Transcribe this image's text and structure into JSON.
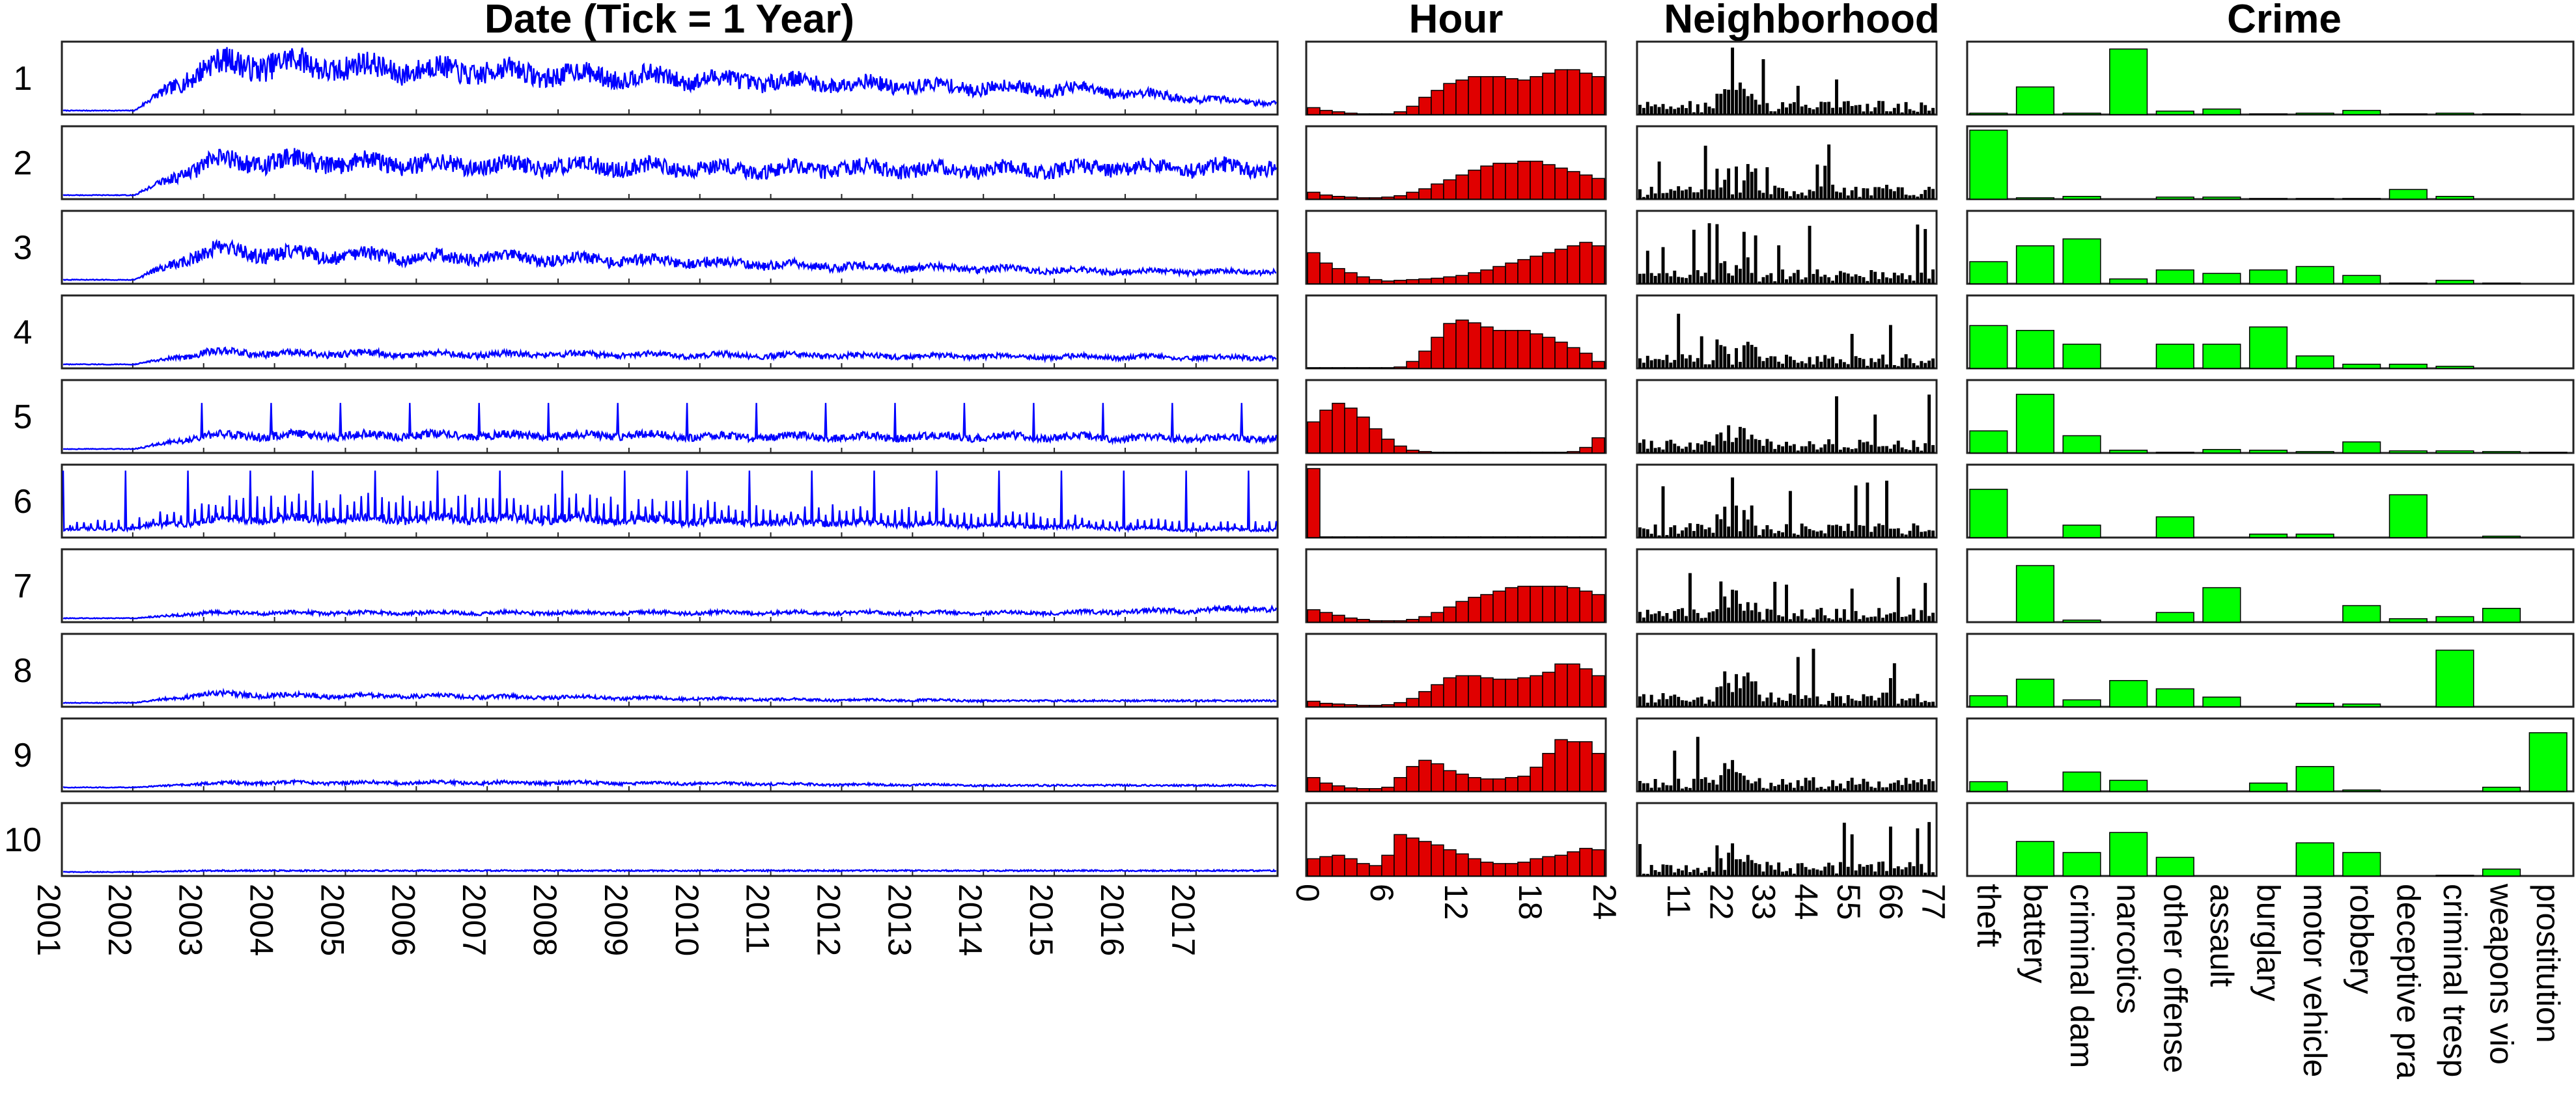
{
  "chart_data": [
    {
      "type": "line",
      "title": "Date (Tick = 1 Year)",
      "x_tick_labels": [
        "2001",
        "2002",
        "2003",
        "2004",
        "2005",
        "2006",
        "2007",
        "2008",
        "2009",
        "2010",
        "2011",
        "2012",
        "2013",
        "2014",
        "2015",
        "2016",
        "2017"
      ],
      "row_labels": [
        "1",
        "2",
        "3",
        "4",
        "5",
        "6",
        "7",
        "8",
        "9",
        "10"
      ],
      "series_color": "#0000ff",
      "series": [
        {
          "label": "1",
          "yearly_level": [
            0.02,
            0.02,
            0.68,
            0.72,
            0.66,
            0.62,
            0.6,
            0.55,
            0.52,
            0.48,
            0.45,
            0.42,
            0.38,
            0.36,
            0.34,
            0.28,
            0.18,
            0.14
          ]
        },
        {
          "label": "2",
          "yearly_level": [
            0.02,
            0.02,
            0.5,
            0.52,
            0.5,
            0.48,
            0.46,
            0.45,
            0.44,
            0.42,
            0.4,
            0.42,
            0.4,
            0.4,
            0.4,
            0.42,
            0.42,
            0.44
          ]
        },
        {
          "label": "3",
          "yearly_level": [
            0.02,
            0.02,
            0.45,
            0.4,
            0.38,
            0.36,
            0.34,
            0.32,
            0.3,
            0.28,
            0.24,
            0.22,
            0.2,
            0.18,
            0.16,
            0.14,
            0.14,
            0.14
          ]
        },
        {
          "label": "4",
          "yearly_level": [
            0.02,
            0.02,
            0.2,
            0.18,
            0.18,
            0.17,
            0.17,
            0.17,
            0.16,
            0.16,
            0.15,
            0.15,
            0.14,
            0.14,
            0.13,
            0.13,
            0.12,
            0.12
          ]
        },
        {
          "label": "5",
          "yearly_level": [
            0.02,
            0.02,
            0.22,
            0.22,
            0.22,
            0.22,
            0.22,
            0.22,
            0.22,
            0.2,
            0.2,
            0.2,
            0.2,
            0.2,
            0.2,
            0.18,
            0.18,
            0.18
          ]
        },
        {
          "label": "6",
          "yearly_level": [
            0.08,
            0.1,
            0.22,
            0.24,
            0.24,
            0.24,
            0.24,
            0.24,
            0.22,
            0.2,
            0.18,
            0.18,
            0.16,
            0.14,
            0.12,
            0.1,
            0.08,
            0.08
          ]
        },
        {
          "label": "7",
          "yearly_level": [
            0.02,
            0.02,
            0.1,
            0.1,
            0.1,
            0.1,
            0.1,
            0.1,
            0.1,
            0.1,
            0.1,
            0.1,
            0.1,
            0.1,
            0.1,
            0.12,
            0.14,
            0.16
          ]
        },
        {
          "label": "8",
          "yearly_level": [
            0.02,
            0.02,
            0.15,
            0.13,
            0.12,
            0.12,
            0.11,
            0.1,
            0.09,
            0.08,
            0.07,
            0.06,
            0.06,
            0.05,
            0.05,
            0.05,
            0.05,
            0.05
          ]
        },
        {
          "label": "9",
          "yearly_level": [
            0.02,
            0.02,
            0.08,
            0.09,
            0.09,
            0.09,
            0.09,
            0.09,
            0.08,
            0.08,
            0.07,
            0.06,
            0.06,
            0.05,
            0.05,
            0.05,
            0.05,
            0.05
          ]
        },
        {
          "label": "10",
          "yearly_level": [
            0.02,
            0.02,
            0.04,
            0.04,
            0.04,
            0.04,
            0.04,
            0.04,
            0.04,
            0.04,
            0.04,
            0.04,
            0.04,
            0.04,
            0.04,
            0.04,
            0.04,
            0.04
          ]
        }
      ]
    },
    {
      "type": "bar",
      "title": "Hour",
      "x_tick_labels": [
        "0",
        "6",
        "12",
        "18",
        "24"
      ],
      "bar_color": "#e00000",
      "categories": [
        "0",
        "1",
        "2",
        "3",
        "4",
        "5",
        "6",
        "7",
        "8",
        "9",
        "10",
        "11",
        "12",
        "13",
        "14",
        "15",
        "16",
        "17",
        "18",
        "19",
        "20",
        "21",
        "22",
        "23"
      ],
      "series": [
        {
          "label": "1",
          "values": [
            0.1,
            0.06,
            0.04,
            0.02,
            0.01,
            0.01,
            0.01,
            0.04,
            0.12,
            0.25,
            0.35,
            0.45,
            0.5,
            0.55,
            0.55,
            0.55,
            0.52,
            0.5,
            0.55,
            0.6,
            0.65,
            0.65,
            0.6,
            0.55
          ]
        },
        {
          "label": "2",
          "values": [
            0.1,
            0.06,
            0.04,
            0.03,
            0.02,
            0.02,
            0.03,
            0.05,
            0.1,
            0.15,
            0.22,
            0.28,
            0.35,
            0.42,
            0.48,
            0.52,
            0.52,
            0.55,
            0.55,
            0.5,
            0.45,
            0.4,
            0.35,
            0.3
          ]
        },
        {
          "label": "3",
          "values": [
            0.45,
            0.3,
            0.22,
            0.16,
            0.1,
            0.06,
            0.04,
            0.05,
            0.06,
            0.07,
            0.08,
            0.1,
            0.12,
            0.16,
            0.2,
            0.25,
            0.3,
            0.35,
            0.4,
            0.45,
            0.5,
            0.55,
            0.6,
            0.55
          ]
        },
        {
          "label": "4",
          "values": [
            0.01,
            0.01,
            0.01,
            0.01,
            0.01,
            0.01,
            0.01,
            0.02,
            0.1,
            0.25,
            0.45,
            0.65,
            0.7,
            0.66,
            0.6,
            0.55,
            0.55,
            0.55,
            0.5,
            0.45,
            0.38,
            0.3,
            0.22,
            0.1
          ]
        },
        {
          "label": "5",
          "values": [
            0.45,
            0.62,
            0.72,
            0.65,
            0.52,
            0.35,
            0.2,
            0.1,
            0.04,
            0.02,
            0.01,
            0.01,
            0.01,
            0.01,
            0.01,
            0.01,
            0.01,
            0.01,
            0.01,
            0.01,
            0.01,
            0.02,
            0.08,
            0.22
          ]
        },
        {
          "label": "6",
          "values": [
            1.0,
            0.01,
            0.01,
            0.01,
            0.01,
            0.01,
            0.01,
            0.01,
            0.01,
            0.01,
            0.01,
            0.01,
            0.01,
            0.01,
            0.01,
            0.01,
            0.01,
            0.01,
            0.01,
            0.01,
            0.01,
            0.01,
            0.01,
            0.01
          ]
        },
        {
          "label": "7",
          "values": [
            0.18,
            0.14,
            0.1,
            0.06,
            0.04,
            0.02,
            0.02,
            0.02,
            0.04,
            0.08,
            0.14,
            0.22,
            0.3,
            0.36,
            0.4,
            0.45,
            0.5,
            0.52,
            0.52,
            0.52,
            0.52,
            0.5,
            0.45,
            0.4
          ]
        },
        {
          "label": "8",
          "values": [
            0.08,
            0.05,
            0.04,
            0.03,
            0.02,
            0.02,
            0.03,
            0.06,
            0.12,
            0.22,
            0.32,
            0.42,
            0.45,
            0.45,
            0.42,
            0.4,
            0.4,
            0.42,
            0.45,
            0.5,
            0.62,
            0.62,
            0.55,
            0.45
          ]
        },
        {
          "label": "9",
          "values": [
            0.2,
            0.12,
            0.08,
            0.05,
            0.04,
            0.04,
            0.06,
            0.2,
            0.36,
            0.45,
            0.4,
            0.3,
            0.25,
            0.2,
            0.18,
            0.18,
            0.2,
            0.22,
            0.35,
            0.55,
            0.75,
            0.72,
            0.72,
            0.55
          ]
        },
        {
          "label": "10",
          "values": [
            0.25,
            0.28,
            0.3,
            0.25,
            0.18,
            0.15,
            0.3,
            0.6,
            0.55,
            0.5,
            0.45,
            0.38,
            0.32,
            0.25,
            0.2,
            0.18,
            0.18,
            0.2,
            0.25,
            0.28,
            0.3,
            0.35,
            0.4,
            0.38
          ]
        }
      ]
    },
    {
      "type": "bar",
      "title": "Neighborhood",
      "x_tick_labels": [
        "11",
        "22",
        "33",
        "44",
        "55",
        "66",
        "77"
      ],
      "bar_color": "#000000",
      "categories_range": [
        1,
        77
      ]
    },
    {
      "type": "bar",
      "title": "Crime",
      "bar_color": "#00ff00",
      "categories": [
        "theft",
        "battery",
        "criminal dam",
        "narcotics",
        "other offense",
        "assault",
        "burglary",
        "motor vehicle",
        "robbery",
        "deceptive pra",
        "criminal tresp",
        "weapons vio",
        "prostitution"
      ],
      "series": [
        {
          "label": "1",
          "values": [
            0.02,
            0.4,
            0.02,
            0.95,
            0.05,
            0.08,
            0.01,
            0.02,
            0.06,
            0.01,
            0.02,
            0.01,
            0.0
          ]
        },
        {
          "label": "2",
          "values": [
            1.0,
            0.02,
            0.04,
            0.0,
            0.03,
            0.03,
            0.01,
            0.01,
            0.01,
            0.14,
            0.04,
            0.0,
            0.0
          ]
        },
        {
          "label": "3",
          "values": [
            0.32,
            0.55,
            0.65,
            0.07,
            0.2,
            0.15,
            0.2,
            0.25,
            0.12,
            0.01,
            0.05,
            0.01,
            0.0
          ]
        },
        {
          "label": "4",
          "values": [
            0.62,
            0.55,
            0.35,
            0.0,
            0.35,
            0.35,
            0.6,
            0.18,
            0.06,
            0.06,
            0.03,
            0.0,
            0.0
          ]
        },
        {
          "label": "5",
          "values": [
            0.32,
            0.85,
            0.25,
            0.04,
            0.01,
            0.05,
            0.04,
            0.02,
            0.16,
            0.03,
            0.03,
            0.02,
            0.01
          ]
        },
        {
          "label": "6",
          "values": [
            0.7,
            0.0,
            0.18,
            0.0,
            0.3,
            0.0,
            0.05,
            0.05,
            0.0,
            0.62,
            0.0,
            0.02,
            0.0
          ]
        },
        {
          "label": "7",
          "values": [
            0.0,
            0.82,
            0.03,
            0.0,
            0.14,
            0.5,
            0.0,
            0.0,
            0.24,
            0.05,
            0.08,
            0.2,
            0.0
          ]
        },
        {
          "label": "8",
          "values": [
            0.16,
            0.4,
            0.1,
            0.38,
            0.26,
            0.14,
            0.0,
            0.05,
            0.04,
            0.0,
            0.82,
            0.0,
            0.0
          ]
        },
        {
          "label": "9",
          "values": [
            0.14,
            0.0,
            0.28,
            0.16,
            0.0,
            0.0,
            0.12,
            0.36,
            0.02,
            0.0,
            0.0,
            0.06,
            0.85
          ]
        },
        {
          "label": "10",
          "values": [
            0.0,
            0.5,
            0.34,
            0.63,
            0.27,
            0.0,
            0.0,
            0.48,
            0.34,
            0.0,
            0.01,
            0.1,
            0.0
          ]
        }
      ]
    }
  ]
}
